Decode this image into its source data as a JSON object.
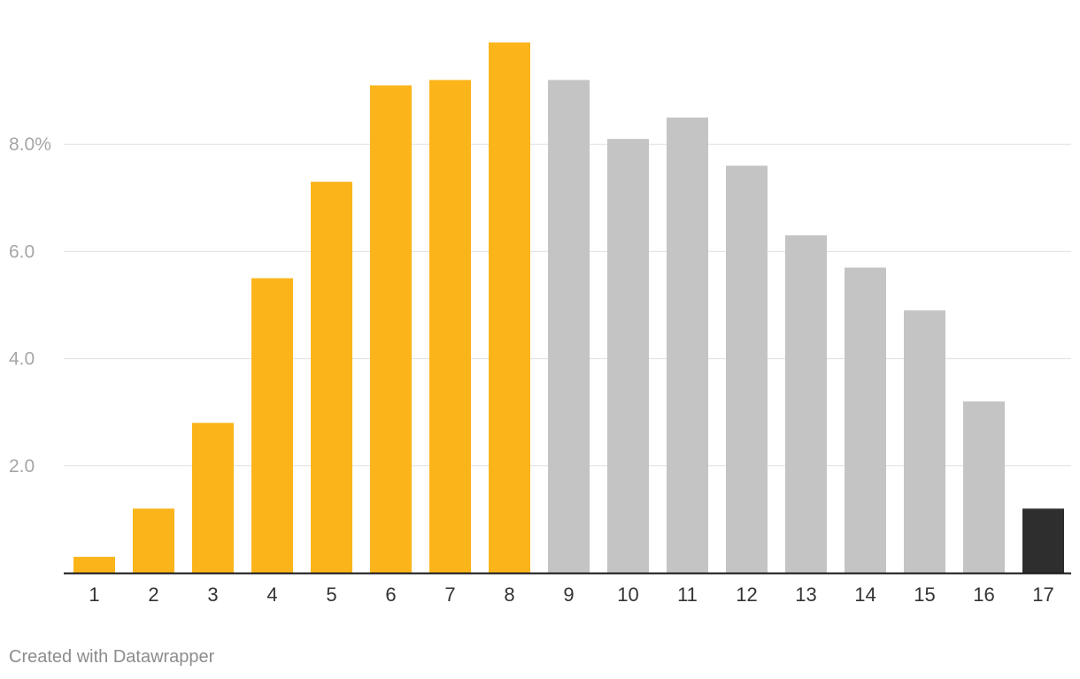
{
  "chart_data": {
    "type": "bar",
    "categories": [
      "1",
      "2",
      "3",
      "4",
      "5",
      "6",
      "7",
      "8",
      "9",
      "10",
      "11",
      "12",
      "13",
      "14",
      "15",
      "16",
      "17"
    ],
    "values": [
      0.3,
      1.2,
      2.8,
      5.5,
      7.3,
      9.1,
      9.2,
      9.9,
      9.2,
      8.1,
      8.5,
      7.6,
      6.3,
      5.7,
      4.9,
      3.2,
      1.2
    ],
    "bar_colors": [
      "#fbb41a",
      "#fbb41a",
      "#fbb41a",
      "#fbb41a",
      "#fbb41a",
      "#fbb41a",
      "#fbb41a",
      "#fbb41a",
      "#c4c4c4",
      "#c4c4c4",
      "#c4c4c4",
      "#c4c4c4",
      "#c4c4c4",
      "#c4c4c4",
      "#c4c4c4",
      "#c4c4c4",
      "#2e2e2e"
    ],
    "y_ticks": [
      2,
      4,
      6,
      8
    ],
    "y_tick_labels": [
      "2.0",
      "4.0",
      "6.0",
      "8.0%"
    ],
    "ylim": [
      0,
      10
    ],
    "grid": true,
    "title": "",
    "xlabel": "",
    "ylabel": ""
  },
  "colors": {
    "highlight": "#fbb41a",
    "neutral": "#c4c4c4",
    "emphasis": "#2e2e2e",
    "gridline": "#e0e0e0",
    "axis": "#1a1a1a"
  },
  "footer": {
    "credit": "Created with Datawrapper"
  }
}
